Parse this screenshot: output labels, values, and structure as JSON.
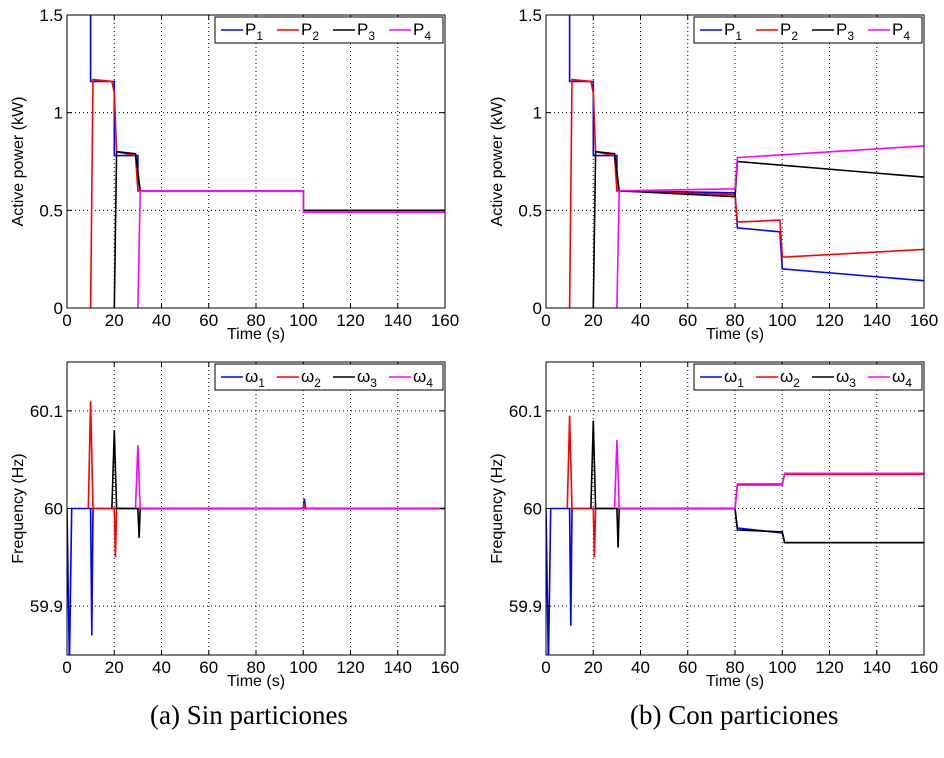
{
  "captions": {
    "a": "(a) Sin particiones",
    "b": "(b) Con particiones"
  },
  "colors": {
    "s1": "#0000ff",
    "s2": "#ff0000",
    "s3": "#000000",
    "s4": "#ff00ff"
  },
  "chart_data": [
    {
      "id": "power-a",
      "type": "line",
      "xlabel": "Time (s)",
      "ylabel": "Active power (kW)",
      "xlim": [
        0,
        160
      ],
      "ylim": [
        0,
        1.5
      ],
      "xticks": [
        0,
        20,
        40,
        60,
        80,
        100,
        120,
        140,
        160
      ],
      "yticks": [
        0,
        0.5,
        1,
        1.5
      ],
      "ytick_labels": [
        "0",
        "0.5",
        "1",
        "1.5"
      ],
      "grid": true,
      "legend_position": "top-right",
      "legend_subscript": false,
      "series": [
        {
          "name": "P_1",
          "points": [
            [
              0,
              1.6
            ],
            [
              10,
              1.6
            ],
            [
              10,
              1.16
            ],
            [
              20,
              1.16
            ],
            [
              20,
              0.78
            ],
            [
              30,
              0.78
            ],
            [
              30,
              0.6
            ],
            [
              100,
              0.6
            ],
            [
              100,
              0.5
            ],
            [
              160,
              0.5
            ]
          ]
        },
        {
          "name": "P_2",
          "points": [
            [
              10,
              0
            ],
            [
              11,
              1.17
            ],
            [
              19,
              1.16
            ],
            [
              20,
              1.1
            ],
            [
              21,
              0.8
            ],
            [
              29,
              0.78
            ],
            [
              30,
              0.6
            ],
            [
              100,
              0.6
            ],
            [
              100,
              0.5
            ],
            [
              160,
              0.5
            ]
          ]
        },
        {
          "name": "P_3",
          "points": [
            [
              20,
              0
            ],
            [
              21,
              0.8
            ],
            [
              29,
              0.79
            ],
            [
              30,
              0.7
            ],
            [
              31,
              0.6
            ],
            [
              100,
              0.6
            ],
            [
              100,
              0.5
            ],
            [
              160,
              0.5
            ]
          ]
        },
        {
          "name": "P_4",
          "points": [
            [
              30,
              0
            ],
            [
              31,
              0.6
            ],
            [
              100,
              0.6
            ],
            [
              100,
              0.49
            ],
            [
              160,
              0.49
            ]
          ]
        }
      ]
    },
    {
      "id": "power-b",
      "type": "line",
      "xlabel": "Time (s)",
      "ylabel": "Active power (kW)",
      "xlim": [
        0,
        160
      ],
      "ylim": [
        0,
        1.5
      ],
      "xticks": [
        0,
        20,
        40,
        60,
        80,
        100,
        120,
        140,
        160
      ],
      "yticks": [
        0,
        0.5,
        1,
        1.5
      ],
      "ytick_labels": [
        "0",
        "0.5",
        "1",
        "1.5"
      ],
      "grid": true,
      "legend_position": "top-right",
      "legend_subscript": false,
      "series": [
        {
          "name": "P_1",
          "points": [
            [
              0,
              1.6
            ],
            [
              10,
              1.6
            ],
            [
              10,
              1.16
            ],
            [
              20,
              1.16
            ],
            [
              20,
              0.78
            ],
            [
              30,
              0.78
            ],
            [
              30,
              0.6
            ],
            [
              80,
              0.59
            ],
            [
              81,
              0.41
            ],
            [
              99,
              0.39
            ],
            [
              100,
              0.2
            ],
            [
              160,
              0.14
            ]
          ]
        },
        {
          "name": "P_2",
          "points": [
            [
              10,
              0
            ],
            [
              11,
              1.17
            ],
            [
              19,
              1.16
            ],
            [
              20,
              1.1
            ],
            [
              21,
              0.8
            ],
            [
              29,
              0.78
            ],
            [
              30,
              0.6
            ],
            [
              80,
              0.58
            ],
            [
              81,
              0.44
            ],
            [
              99,
              0.45
            ],
            [
              100,
              0.26
            ],
            [
              160,
              0.3
            ]
          ]
        },
        {
          "name": "P_3",
          "points": [
            [
              20,
              0
            ],
            [
              21,
              0.8
            ],
            [
              29,
              0.79
            ],
            [
              30,
              0.7
            ],
            [
              31,
              0.6
            ],
            [
              80,
              0.57
            ],
            [
              81,
              0.75
            ],
            [
              160,
              0.67
            ]
          ]
        },
        {
          "name": "P_4",
          "points": [
            [
              30,
              0
            ],
            [
              31,
              0.6
            ],
            [
              80,
              0.61
            ],
            [
              81,
              0.77
            ],
            [
              160,
              0.83
            ]
          ]
        }
      ]
    },
    {
      "id": "freq-a",
      "type": "line",
      "xlabel": "Time (s)",
      "ylabel": "Frequency (Hz)",
      "xlim": [
        0,
        160
      ],
      "ylim": [
        59.85,
        60.15
      ],
      "xticks": [
        0,
        20,
        40,
        60,
        80,
        100,
        120,
        140,
        160
      ],
      "yticks": [
        59.9,
        60,
        60.1
      ],
      "ytick_labels": [
        "59.9",
        "60",
        "60.1"
      ],
      "grid": true,
      "legend_position": "top-right",
      "legend_subscript": true,
      "series": [
        {
          "name": "ω_1",
          "points": [
            [
              0,
              60
            ],
            [
              1,
              59.84
            ],
            [
              2,
              60
            ],
            [
              10,
              60
            ],
            [
              10.5,
              59.87
            ],
            [
              11,
              60
            ],
            [
              100,
              60
            ],
            [
              100.5,
              60.01
            ],
            [
              101,
              60
            ],
            [
              160,
              60
            ]
          ]
        },
        {
          "name": "ω_2",
          "points": [
            [
              9,
              60
            ],
            [
              10,
              60.11
            ],
            [
              11,
              60
            ],
            [
              20,
              60
            ],
            [
              20.5,
              59.95
            ],
            [
              21,
              60
            ],
            [
              100,
              60
            ],
            [
              100.5,
              60.005
            ],
            [
              101,
              60
            ],
            [
              160,
              60
            ]
          ]
        },
        {
          "name": "ω_3",
          "points": [
            [
              19,
              60
            ],
            [
              20,
              60.08
            ],
            [
              21,
              60
            ],
            [
              30,
              60
            ],
            [
              30.5,
              59.97
            ],
            [
              31,
              60
            ],
            [
              160,
              60
            ]
          ]
        },
        {
          "name": "ω_4",
          "points": [
            [
              29,
              60
            ],
            [
              30,
              60.065
            ],
            [
              31,
              60
            ],
            [
              160,
              60
            ]
          ]
        }
      ]
    },
    {
      "id": "freq-b",
      "type": "line",
      "xlabel": "Time (s)",
      "ylabel": "Frequency (Hz)",
      "xlim": [
        0,
        160
      ],
      "ylim": [
        59.85,
        60.15
      ],
      "xticks": [
        0,
        20,
        40,
        60,
        80,
        100,
        120,
        140,
        160
      ],
      "yticks": [
        59.9,
        60,
        60.1
      ],
      "ytick_labels": [
        "59.9",
        "60",
        "60.1"
      ],
      "grid": true,
      "legend_position": "top-right",
      "legend_subscript": true,
      "series": [
        {
          "name": "ω_1",
          "points": [
            [
              0,
              60
            ],
            [
              1,
              59.84
            ],
            [
              2,
              60
            ],
            [
              10,
              60
            ],
            [
              10.5,
              59.88
            ],
            [
              11,
              60
            ],
            [
              80,
              60
            ],
            [
              81,
              59.98
            ],
            [
              100,
              59.975
            ],
            [
              101,
              59.965
            ],
            [
              160,
              59.965
            ]
          ]
        },
        {
          "name": "ω_2",
          "points": [
            [
              9,
              60
            ],
            [
              10,
              60.095
            ],
            [
              11,
              60
            ],
            [
              20,
              60
            ],
            [
              20.5,
              59.95
            ],
            [
              21,
              60
            ],
            [
              80,
              60
            ],
            [
              81,
              60.025
            ],
            [
              100,
              60.025
            ],
            [
              101,
              60.035
            ],
            [
              160,
              60.035
            ]
          ]
        },
        {
          "name": "ω_3",
          "points": [
            [
              19,
              60
            ],
            [
              20,
              60.09
            ],
            [
              21,
              60
            ],
            [
              30,
              60
            ],
            [
              30.5,
              59.96
            ],
            [
              31,
              60
            ],
            [
              80,
              60
            ],
            [
              81,
              59.978
            ],
            [
              100,
              59.976
            ],
            [
              101,
              59.965
            ],
            [
              160,
              59.965
            ]
          ]
        },
        {
          "name": "ω_4",
          "points": [
            [
              29,
              60
            ],
            [
              30,
              60.07
            ],
            [
              31,
              60
            ],
            [
              80,
              60
            ],
            [
              81,
              60.024
            ],
            [
              100,
              60.024
            ],
            [
              101,
              60.036
            ],
            [
              160,
              60.036
            ]
          ]
        }
      ]
    }
  ]
}
